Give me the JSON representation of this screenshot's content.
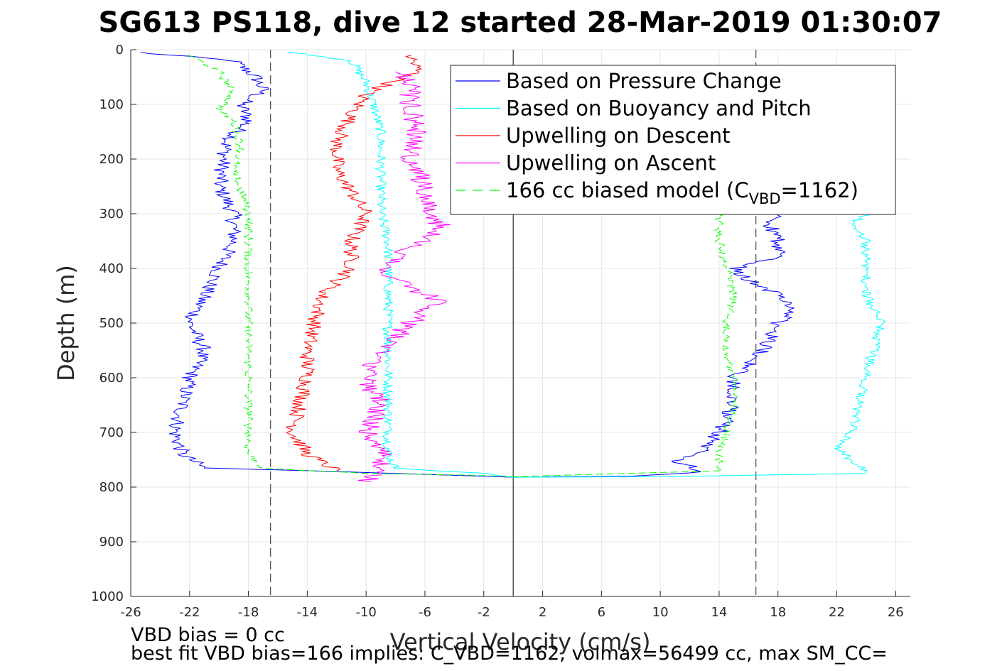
{
  "title": "SG613 PS118, dive 12 started 28-Mar-2019 01:30:07",
  "footer": {
    "line1": "VBD bias = 0 cc",
    "line2": "best fit VBD bias=166 implies: C_VBD=1162, volmax=56499 cc, max SM_CC="
  },
  "legend": {
    "placement": "top-right",
    "entries": [
      {
        "label": "Based on Pressure Change",
        "color": "#0000ff",
        "style": "solid"
      },
      {
        "label": "Based on Buoyancy and Pitch",
        "color": "#00ffff",
        "style": "solid"
      },
      {
        "label": "Upwelling on Descent",
        "color": "#ff0000",
        "style": "solid"
      },
      {
        "label": "Upwelling on Ascent",
        "color": "#ff00ff",
        "style": "solid"
      },
      {
        "label": "166 cc biased model (C",
        "sub": "VBD",
        "tail": "=1162)",
        "color": "#00ff00",
        "style": "dashed"
      }
    ]
  },
  "chart_data": {
    "type": "line",
    "title": "SG613 PS118, dive 12 started 28-Mar-2019 01:30:07",
    "xlabel": "Vertical Velocity (cm/s)",
    "ylabel": "Depth (m)",
    "xlim": [
      -26,
      27
    ],
    "ylim": [
      0,
      1000
    ],
    "y_reversed": true,
    "grid": true,
    "x_ticks": [
      -26,
      -22,
      -18,
      -14,
      -10,
      -6,
      -2,
      2,
      6,
      10,
      14,
      18,
      22,
      26
    ],
    "y_ticks": [
      0,
      100,
      200,
      300,
      400,
      500,
      600,
      700,
      800,
      900,
      1000
    ],
    "reference_lines": {
      "solid_vertical_x": 0,
      "dashed_vertical_x": [
        -16.5,
        16.5
      ]
    },
    "series": [
      {
        "name": "Based on Pressure Change",
        "color": "#0000ff",
        "descent": [
          [
            -25.5,
            5
          ],
          [
            -19,
            20
          ],
          [
            -17.5,
            50
          ],
          [
            -17,
            75
          ],
          [
            -18.5,
            100
          ],
          [
            -18,
            130
          ],
          [
            -19.5,
            170
          ],
          [
            -20,
            250
          ],
          [
            -19,
            300
          ],
          [
            -19,
            350
          ],
          [
            -20,
            400
          ],
          [
            -21,
            450
          ],
          [
            -22,
            500
          ],
          [
            -21,
            550
          ],
          [
            -22,
            600
          ],
          [
            -22.5,
            650
          ],
          [
            -23,
            700
          ],
          [
            -22.5,
            740
          ],
          [
            -21,
            765
          ],
          [
            -14,
            770
          ],
          [
            -8,
            775
          ],
          [
            -2,
            780
          ],
          [
            0,
            782
          ]
        ],
        "ascent": [
          [
            0,
            782
          ],
          [
            8,
            780
          ],
          [
            13,
            772
          ],
          [
            11,
            750
          ],
          [
            13,
            730
          ],
          [
            14,
            700
          ],
          [
            15,
            650
          ],
          [
            15,
            600
          ],
          [
            16,
            580
          ],
          [
            17,
            550
          ],
          [
            18,
            500
          ],
          [
            19,
            480
          ],
          [
            18,
            450
          ],
          [
            16,
            420
          ],
          [
            15,
            400
          ],
          [
            18,
            380
          ],
          [
            18,
            350
          ],
          [
            17.5,
            320
          ],
          [
            18,
            300
          ]
        ]
      },
      {
        "name": "Based on Buoyancy and Pitch",
        "color": "#00ffff",
        "descent": [
          [
            -15,
            5
          ],
          [
            -11,
            20
          ],
          [
            -10,
            60
          ],
          [
            -9.5,
            100
          ],
          [
            -9,
            150
          ],
          [
            -9,
            200
          ],
          [
            -9,
            250
          ],
          [
            -9,
            300
          ],
          [
            -8.5,
            350
          ],
          [
            -8.5,
            400
          ],
          [
            -8.5,
            450
          ],
          [
            -8.5,
            500
          ],
          [
            -8.5,
            550
          ],
          [
            -8.5,
            600
          ],
          [
            -8.5,
            650
          ],
          [
            -8.5,
            700
          ],
          [
            -8.5,
            740
          ],
          [
            -8,
            765
          ],
          [
            -2,
            775
          ],
          [
            0,
            782
          ]
        ],
        "ascent": [
          [
            0,
            782
          ],
          [
            10,
            781
          ],
          [
            24,
            775
          ],
          [
            23,
            750
          ],
          [
            22,
            730
          ],
          [
            23,
            700
          ],
          [
            23.5,
            650
          ],
          [
            24,
            600
          ],
          [
            24.5,
            550
          ],
          [
            25,
            500
          ],
          [
            24,
            450
          ],
          [
            24,
            400
          ],
          [
            24,
            350
          ],
          [
            23,
            320
          ],
          [
            24,
            300
          ]
        ]
      },
      {
        "name": "Upwelling on Descent",
        "color": "#ff0000",
        "values": [
          [
            -7,
            10
          ],
          [
            -6.5,
            40
          ],
          [
            -10,
            80
          ],
          [
            -11,
            120
          ],
          [
            -12,
            170
          ],
          [
            -12,
            220
          ],
          [
            -11,
            260
          ],
          [
            -10,
            300
          ],
          [
            -11,
            350
          ],
          [
            -11,
            400
          ],
          [
            -13,
            450
          ],
          [
            -13.5,
            500
          ],
          [
            -14,
            550
          ],
          [
            -14,
            600
          ],
          [
            -14.5,
            650
          ],
          [
            -15,
            700
          ],
          [
            -14,
            740
          ],
          [
            -12,
            770
          ]
        ]
      },
      {
        "name": "Upwelling on Ascent",
        "color": "#ff00ff",
        "values": [
          [
            -10,
            790
          ],
          [
            -9.5,
            770
          ],
          [
            -8.5,
            740
          ],
          [
            -10,
            700
          ],
          [
            -9,
            650
          ],
          [
            -10,
            600
          ],
          [
            -9,
            550
          ],
          [
            -7,
            500
          ],
          [
            -5,
            460
          ],
          [
            -9,
            410
          ],
          [
            -8,
            380
          ],
          [
            -6,
            350
          ],
          [
            -5,
            320
          ],
          [
            -6,
            280
          ],
          [
            -6,
            250
          ],
          [
            -7,
            200
          ],
          [
            -6.5,
            150
          ],
          [
            -7,
            100
          ],
          [
            -7,
            60
          ],
          [
            -8,
            40
          ]
        ]
      },
      {
        "name": "166 cc biased model (CVBD=1162)",
        "color": "#00ff00",
        "dashed": true,
        "descent": [
          [
            -22,
            10
          ],
          [
            -20,
            40
          ],
          [
            -19,
            80
          ],
          [
            -20,
            110
          ],
          [
            -19,
            130
          ],
          [
            -18.5,
            180
          ],
          [
            -19,
            220
          ],
          [
            -18.5,
            260
          ],
          [
            -18,
            300
          ],
          [
            -18,
            350
          ],
          [
            -18,
            400
          ],
          [
            -18,
            450
          ],
          [
            -18,
            500
          ],
          [
            -18,
            550
          ],
          [
            -18,
            600
          ],
          [
            -18,
            650
          ],
          [
            -18,
            700
          ],
          [
            -18,
            740
          ],
          [
            -17,
            766
          ],
          [
            -10,
            775
          ],
          [
            -3,
            778
          ],
          [
            0,
            781
          ]
        ],
        "ascent": [
          [
            0,
            781
          ],
          [
            14,
            770
          ],
          [
            14,
            740
          ],
          [
            14.5,
            700
          ],
          [
            15,
            650
          ],
          [
            15,
            600
          ],
          [
            14.5,
            550
          ],
          [
            14.5,
            500
          ],
          [
            15,
            450
          ],
          [
            14.5,
            400
          ],
          [
            14,
            350
          ],
          [
            14,
            320
          ],
          [
            14,
            300
          ]
        ]
      }
    ]
  }
}
